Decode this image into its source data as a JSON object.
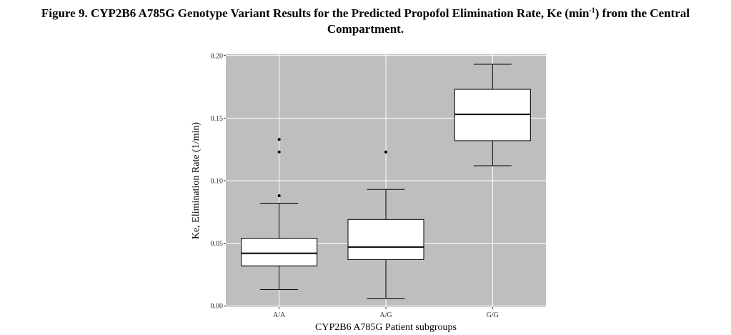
{
  "figure": {
    "title_main": "Figure 9. CYP2B6 A785G Genotype Variant Results for the Predicted Propofol Elimination Rate, Ke (min",
    "title_sup": "-1",
    "title_end": ") from the Central",
    "title_line2": "Compartment."
  },
  "colors": {
    "panel_background": "#bebebc",
    "grid": "#ffffff",
    "box_fill": "#ffffff",
    "stroke": "#000000"
  },
  "chart_data": {
    "type": "boxplot",
    "xlabel": "CYP2B6 A785G Patient subgroups",
    "ylabel": "Ke, Elimination Rate (1/min)",
    "ylim": [
      -0.001,
      0.201
    ],
    "yticks": [
      0.0,
      0.05,
      0.1,
      0.15,
      0.2
    ],
    "ytick_labels": [
      "0.00",
      "0.05",
      "0.10",
      "0.15",
      "0.20"
    ],
    "grid": true,
    "categories": [
      "A/A",
      "A/G",
      "G/G"
    ],
    "boxes": [
      {
        "category": "A/A",
        "whisker_low": 0.013,
        "q1": 0.032,
        "median": 0.042,
        "q3": 0.054,
        "whisker_high": 0.082,
        "outliers": [
          0.088,
          0.123,
          0.133
        ]
      },
      {
        "category": "A/G",
        "whisker_low": 0.006,
        "q1": 0.037,
        "median": 0.047,
        "q3": 0.069,
        "whisker_high": 0.093,
        "outliers": [
          0.123
        ]
      },
      {
        "category": "G/G",
        "whisker_low": 0.112,
        "q1": 0.132,
        "median": 0.153,
        "q3": 0.173,
        "whisker_high": 0.193,
        "outliers": []
      }
    ]
  }
}
